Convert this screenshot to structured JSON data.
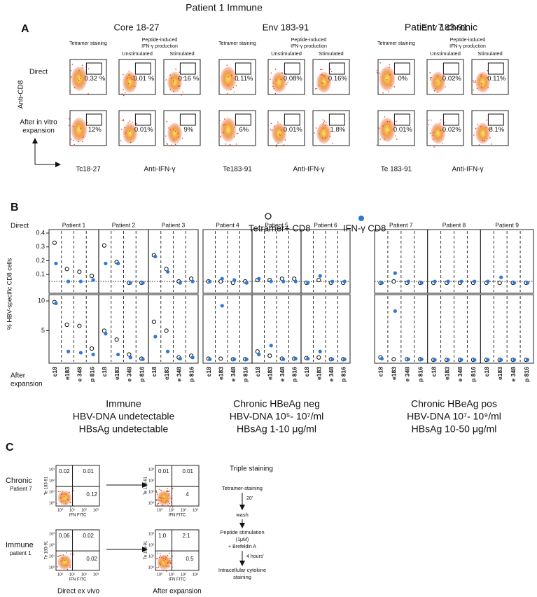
{
  "panel_a": {
    "label": "A",
    "headers": [
      "Patient 1 Immune",
      "Patient 7 chronic"
    ],
    "y_axis": "Anti-CD8",
    "rows": [
      [
        "Direct"
      ],
      [
        "After in vitro",
        "expansion"
      ]
    ],
    "tetramer_heading": "Tetramer staining",
    "peptide_heading": [
      "Peptide-induced",
      "IFN-γ production"
    ],
    "conditions": [
      "Unstimulated",
      "Stimulated"
    ],
    "groups": [
      {
        "title": "Core 18-27",
        "tetramer_label": "Tc18-27",
        "ifn_label": "Anti-IFN-γ",
        "percents": [
          [
            "0.32 %",
            "0.01 %",
            "0.16 %"
          ],
          [
            "12%",
            "0.01%",
            "9%"
          ]
        ]
      },
      {
        "title": "Env 183-91",
        "tetramer_label": "Te183-91",
        "ifn_label": "Anti-IFN-γ",
        "percents": [
          [
            "0.11%",
            "0.08%",
            "0.16%"
          ],
          [
            "6%",
            "0.01%",
            "1.8%"
          ]
        ]
      },
      {
        "title": "Env 183-91",
        "tetramer_label": "Te 183-91",
        "ifn_label": "Anti-IFN-γ",
        "percents": [
          [
            "0%",
            "0.02%",
            "0.11%"
          ],
          [
            "0.01%",
            "0.02%",
            "8.1%"
          ]
        ]
      }
    ]
  },
  "panel_b": {
    "label": "B",
    "row_labels": [
      [
        "Direct"
      ],
      [
        "After",
        "expansion"
      ]
    ],
    "y_label": "% HBV-specific CD8 cells",
    "legend": [
      "Tetramer+ CD8",
      "IFN-γ CD8"
    ],
    "tetramer_color": "#111111",
    "ifn_color": "#2f78d6",
    "categories": [
      "c18",
      "e183",
      "e 348",
      "p 816"
    ],
    "top": {
      "ylim": [
        0,
        0.4
      ],
      "yticks": [
        0.1,
        0.2,
        0.3,
        0.4
      ],
      "threshold": 0.05
    },
    "bottom": {
      "ylim": [
        0,
        10
      ],
      "yticks": [
        5,
        10
      ]
    },
    "groups": [
      {
        "caption": [
          "Immune",
          "HBV-DNA undetectable",
          "HBsAg undetectable"
        ],
        "patients": [
          {
            "name": "Patient 1",
            "direct": {
              "tetramer": [
                0.33,
                0.14,
                0.12,
                0.09
              ],
              "ifn": [
                0.18,
                0.05,
                0.05,
                0.06
              ]
            },
            "expansion": {
              "tetramer": [
                9.8,
                6,
                5.8,
                2
              ],
              "ifn": [
                9.6,
                1.5,
                1.3,
                1
              ]
            }
          },
          {
            "name": "Patient  2",
            "direct": {
              "tetramer": [
                0.31,
                0.19,
                0.04,
                0.04
              ],
              "ifn": [
                0.18,
                0.18,
                0.04,
                0.04
              ]
            },
            "expansion": {
              "tetramer": [
                5,
                3.5,
                1,
                0.3
              ],
              "ifn": [
                4.5,
                1,
                0.5,
                0.2
              ]
            }
          },
          {
            "name": "Patient 3",
            "direct": {
              "tetramer": [
                0.24,
                0.14,
                0.05,
                0.07
              ],
              "ifn": [
                0.23,
                0.12,
                0.04,
                0.05
              ]
            },
            "expansion": {
              "tetramer": [
                6.5,
                5,
                0.5,
                0.8
              ],
              "ifn": [
                4,
                1.5,
                0.3,
                0.5
              ]
            }
          }
        ]
      },
      {
        "caption": [
          "Chronic  HBeAg neg",
          "HBV-DNA 10⁵- 10⁷/ml",
          "HBsAg 1-10 μg/ml"
        ],
        "patients": [
          {
            "name": "Patient 4",
            "direct": {
              "tetramer": [
                0.05,
                0.05,
                0.04,
                0.05
              ],
              "ifn": [
                0.05,
                0.07,
                0.06,
                0.04
              ]
            },
            "expansion": {
              "tetramer": [
                0.3,
                0.3,
                0.2,
                0.2
              ],
              "ifn": [
                0.2,
                9.2,
                0.2,
                0.2
              ]
            }
          },
          {
            "name": "Patient 5",
            "direct": {
              "tetramer": [
                0.06,
                0.06,
                0.07,
                0.07
              ],
              "ifn": [
                0.07,
                0.05,
                0.05,
                0.05
              ]
            },
            "expansion": {
              "tetramer": [
                1.5,
                0.8,
                0.3,
                0.3
              ],
              "ifn": [
                1,
                2.5,
                0.2,
                0.3
              ]
            }
          },
          {
            "name": "Patient 6",
            "direct": {
              "tetramer": [
                0.04,
                0.06,
                0.04,
                0.04
              ],
              "ifn": [
                0.04,
                0.09,
                0.05,
                0.05
              ]
            },
            "expansion": {
              "tetramer": [
                0.4,
                0.5,
                0.2,
                0.2
              ],
              "ifn": [
                0.3,
                1.5,
                0.2,
                0.2
              ]
            }
          }
        ]
      },
      {
        "caption": [
          "Chronic  HBeAg pos",
          "HBV-DNA 10⁷- 10⁹/ml",
          "HBsAg 10-50 μg/ml"
        ],
        "patients": [
          {
            "name": "Patient 7",
            "direct": {
              "tetramer": [
                0.04,
                0.05,
                0.04,
                0.04
              ],
              "ifn": [
                0.04,
                0.11,
                0.05,
                0.04
              ]
            },
            "expansion": {
              "tetramer": [
                0.5,
                0.2,
                0.2,
                0.2
              ],
              "ifn": [
                0.3,
                8.3,
                0.2,
                0.2
              ]
            }
          },
          {
            "name": "Patient 8",
            "direct": {
              "tetramer": [
                0.04,
                0.04,
                0.04,
                0.04
              ],
              "ifn": [
                0.05,
                0.05,
                0.05,
                0.05
              ]
            },
            "expansion": {
              "tetramer": [
                0.1,
                0.1,
                0.1,
                0.1
              ],
              "ifn": [
                0.1,
                0.1,
                0.1,
                0.1
              ]
            }
          },
          {
            "name": "Patient 9",
            "direct": {
              "tetramer": [
                0.04,
                0.04,
                0.04,
                0.04
              ],
              "ifn": [
                0.05,
                0.08,
                0.04,
                0.04
              ]
            },
            "expansion": {
              "tetramer": [
                0.1,
                0.1,
                0.1,
                0.1
              ],
              "ifn": [
                0.1,
                0.1,
                0.1,
                0.1
              ]
            }
          }
        ]
      }
    ]
  },
  "panel_c": {
    "label": "C",
    "y_axis": "Te 183-91",
    "x_axis": "IFN FITC",
    "axis_ticks": [
      "10⁰",
      "10¹",
      "10²",
      "10³"
    ],
    "columns": [
      "Direct ex vivo",
      "After  expansion"
    ],
    "rows": [
      {
        "name": "Chronic",
        "sub": "Patient 7",
        "plots": [
          {
            "ul": "0.02",
            "ur": "0.01",
            "lr": "0.12"
          },
          {
            "ul": "0.01",
            "ur": "0.01",
            "lr": "4"
          }
        ]
      },
      {
        "name": "Immune",
        "sub": "patient 1",
        "plots": [
          {
            "ul": "0.06",
            "ur": "0.02",
            "lr": "0.02"
          },
          {
            "ul": "1.0",
            "ur": "2.1",
            "lr": "0.5"
          }
        ]
      }
    ],
    "protocol": [
      "Triple staining",
      "Tetramer-staining",
      "20'",
      "wash",
      "Peptide stimulation",
      "(1μM)",
      "+ Brefeldin A",
      "4 hours'",
      "Intracellular cytokine",
      "staining"
    ]
  }
}
